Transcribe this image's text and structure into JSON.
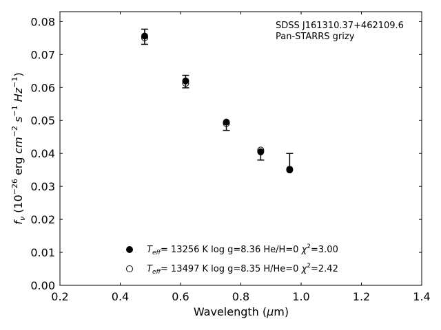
{
  "chart_data": {
    "type": "scatter",
    "annotation": [
      "SDSS J161310.37+462109.6",
      "Pan-STARRS grizy"
    ],
    "xlabel": "Wavelength (μm)",
    "ylabel": "f_ν (10^-26 erg cm^-2 s^-1 Hz^-1)",
    "xlim": [
      0.2,
      1.4
    ],
    "ylim": [
      0.0,
      0.083
    ],
    "x_ticks": [
      "0.2",
      "0.4",
      "0.6",
      "0.8",
      "1.0",
      "1.2",
      "1.4"
    ],
    "y_ticks": [
      "0.00",
      "0.01",
      "0.02",
      "0.03",
      "0.04",
      "0.05",
      "0.06",
      "0.07",
      "0.08"
    ],
    "grid": false,
    "legend_position": "bottom-center",
    "observed": {
      "x": [
        0.481,
        0.617,
        0.752,
        0.866,
        0.962
      ],
      "y": [
        0.0754,
        0.0618,
        0.0492,
        0.0402,
        0.0355
      ],
      "yerr_low": [
        0.0023,
        0.0019,
        0.0022,
        0.0022,
        0.0
      ],
      "yerr_high": [
        0.0023,
        0.0019,
        0.0,
        0.0,
        0.0045
      ]
    },
    "series": [
      {
        "marker": "filled",
        "label": {
          "teff": "T",
          "teff_sub": "eff",
          "text": "= 13256 K  log g=8.36  He/H=0  ",
          "chi": "χ",
          "chi_sup": "2",
          "chi_val": "=3.00"
        },
        "y": [
          0.0756,
          0.062,
          0.0495,
          0.0405,
          0.035
        ]
      },
      {
        "marker": "open",
        "label": {
          "teff": "T",
          "teff_sub": "eff",
          "text": "= 13497 K  log g=8.35  H/He=0  ",
          "chi": "χ",
          "chi_sup": "2",
          "chi_val": "=2.42"
        },
        "y": [
          0.0751,
          0.0613,
          0.0491,
          0.041,
          0.0352
        ]
      }
    ]
  }
}
